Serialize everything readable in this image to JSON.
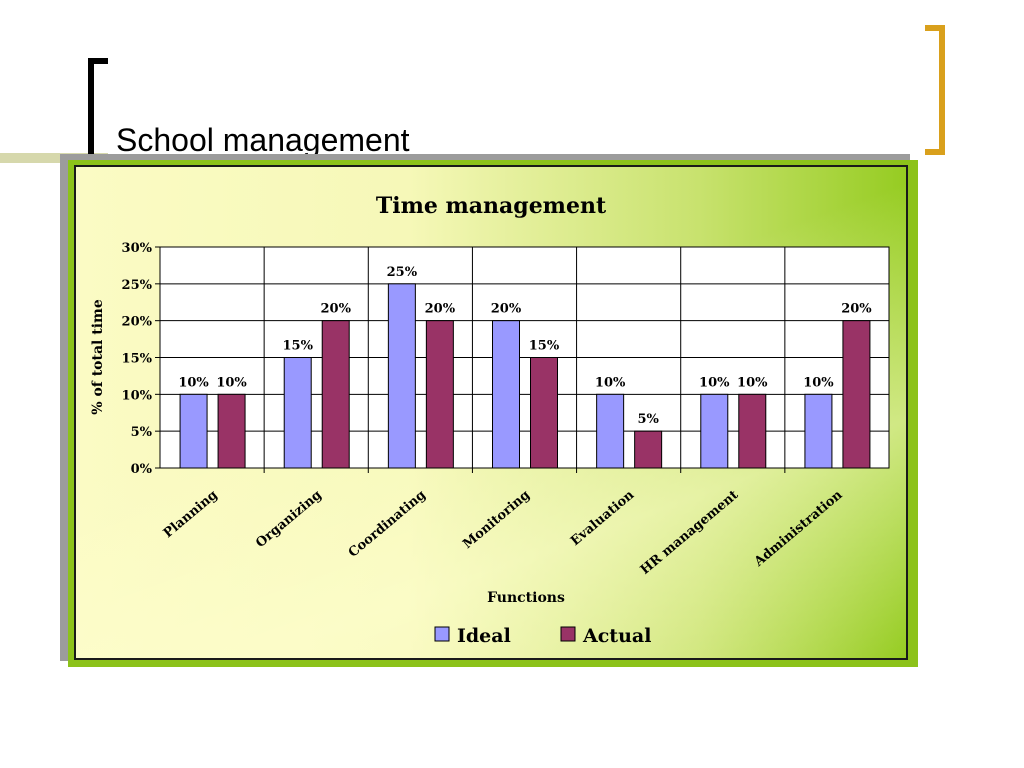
{
  "slide": {
    "title": "School management"
  },
  "colors": {
    "ideal": "#9999ff",
    "actual": "#993366",
    "accent_bracket": "#d9a01c"
  },
  "chart_data": {
    "type": "bar",
    "title": "Time management",
    "xlabel": "Functions",
    "ylabel": "% of total time",
    "categories": [
      "Planning",
      "Organizing",
      "Coordinating",
      "Monitoring",
      "Evaluation",
      "HR management",
      "Administration"
    ],
    "series": [
      {
        "name": "Ideal",
        "values": [
          10,
          15,
          25,
          20,
          10,
          10,
          10
        ]
      },
      {
        "name": "Actual",
        "values": [
          10,
          20,
          20,
          15,
          5,
          10,
          20
        ]
      }
    ],
    "ylim": [
      0,
      30
    ],
    "yticks": [
      0,
      5,
      10,
      15,
      20,
      25,
      30
    ],
    "ytick_suffix": "%",
    "grid": true,
    "legend_position": "bottom"
  }
}
